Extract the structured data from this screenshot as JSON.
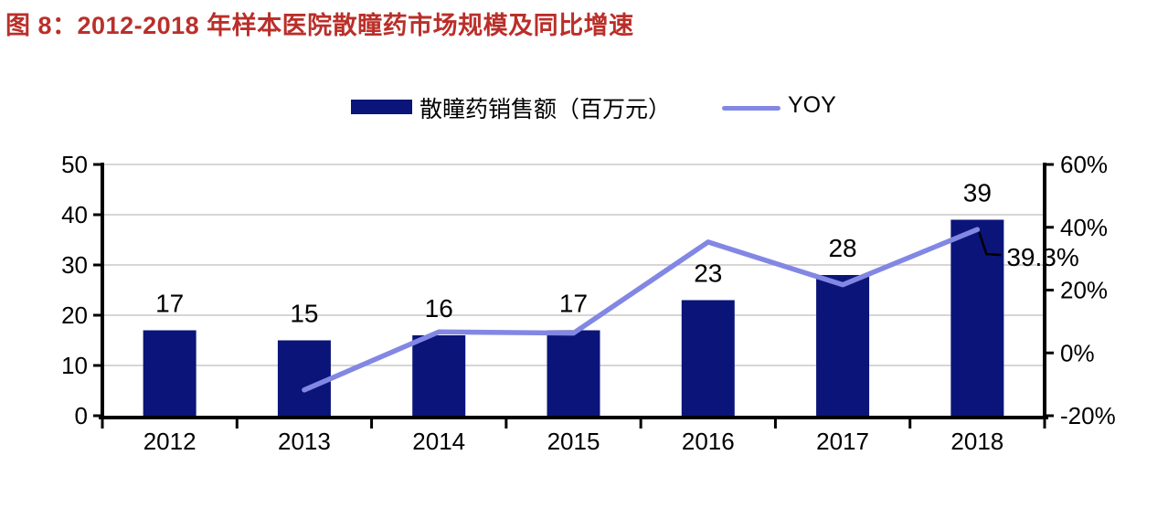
{
  "title": "图 8：2012-2018 年样本医院散瞳药市场规模及同比增速",
  "legend": {
    "bar_label": "散瞳药销售额（百万元）",
    "line_label": "YOY"
  },
  "colors": {
    "bar": "#0b1479",
    "line": "#8287e4",
    "title": "#ba2f2a",
    "grid": "#c9c9c9",
    "axis": "#000000",
    "text": "#000000"
  },
  "chart_data": {
    "type": "bar",
    "subtype": "combo-bar-line-dual-axis",
    "categories": [
      "2012",
      "2013",
      "2014",
      "2015",
      "2016",
      "2017",
      "2018"
    ],
    "series": [
      {
        "name": "散瞳药销售额（百万元）",
        "type": "bar",
        "axis": "left",
        "values": [
          17,
          15,
          16,
          17,
          23,
          28,
          39
        ],
        "data_labels": [
          "17",
          "15",
          "16",
          "17",
          "23",
          "28",
          "39"
        ]
      },
      {
        "name": "YOY",
        "type": "line",
        "axis": "right",
        "values": [
          null,
          -11.8,
          6.7,
          6.3,
          35.3,
          21.7,
          39.3
        ]
      }
    ],
    "left_axis": {
      "range": [
        0,
        50
      ],
      "ticks": [
        0,
        10,
        20,
        30,
        40,
        50
      ],
      "tick_labels": [
        "0",
        "10",
        "20",
        "30",
        "40",
        "50"
      ]
    },
    "right_axis": {
      "range": [
        -20,
        60
      ],
      "ticks": [
        -20,
        0,
        20,
        40,
        60
      ],
      "tick_labels": [
        "-20%",
        "0%",
        "20%",
        "40%",
        "60%"
      ]
    },
    "annotation": {
      "series": "YOY",
      "category": "2018",
      "value": 39.3,
      "label": "39.3%"
    },
    "grid": "horizontal",
    "legend_position": "top-center"
  }
}
